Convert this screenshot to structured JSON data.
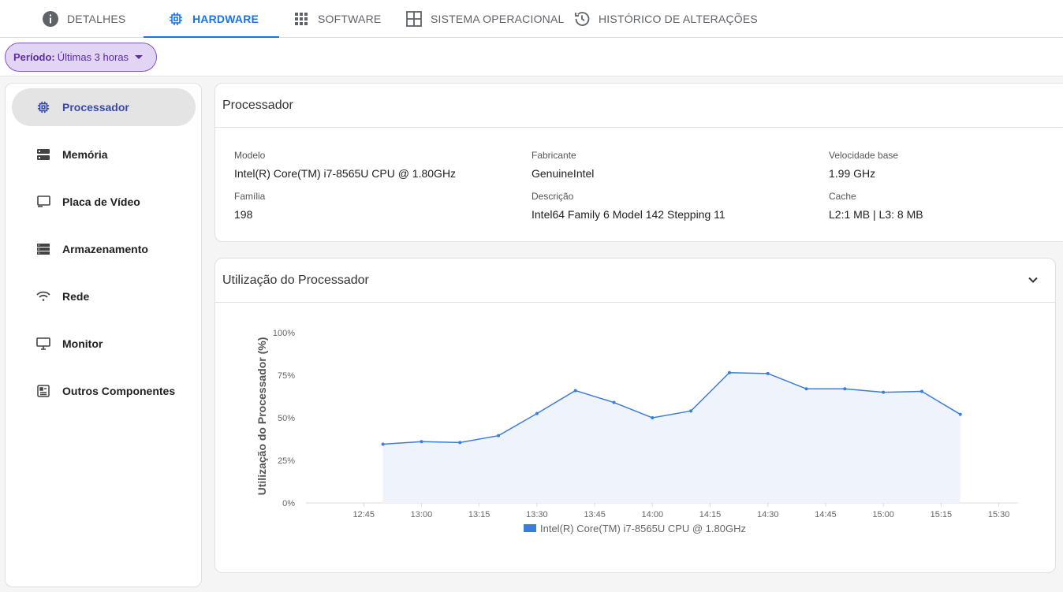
{
  "tabs": [
    {
      "label": "DETALHES",
      "icon": "info-icon",
      "active": false
    },
    {
      "label": "HARDWARE",
      "icon": "chip-icon",
      "active": true
    },
    {
      "label": "SOFTWARE",
      "icon": "apps-grid-icon",
      "active": false
    },
    {
      "label": "SISTEMA OPERACIONAL",
      "icon": "windows-icon",
      "active": false
    },
    {
      "label": "HISTÓRICO DE ALTERAÇÕES",
      "icon": "history-icon",
      "active": false
    }
  ],
  "filter": {
    "label": "Período:",
    "value": "Últimas 3 horas"
  },
  "sidebar": {
    "items": [
      {
        "label": "Processador",
        "icon": "chip-icon",
        "active": true
      },
      {
        "label": "Memória",
        "icon": "memory-icon",
        "active": false
      },
      {
        "label": "Placa de Vídeo",
        "icon": "video-card-icon",
        "active": false
      },
      {
        "label": "Armazenamento",
        "icon": "storage-icon",
        "active": false
      },
      {
        "label": "Rede",
        "icon": "wifi-icon",
        "active": false
      },
      {
        "label": "Monitor",
        "icon": "monitor-icon",
        "active": false
      },
      {
        "label": "Outros Componentes",
        "icon": "components-icon",
        "active": false
      }
    ]
  },
  "processor_card": {
    "title": "Processador",
    "fields": [
      {
        "label": "Modelo",
        "value": "Intel(R) Core(TM) i7-8565U CPU @ 1.80GHz"
      },
      {
        "label": "Fabricante",
        "value": "GenuineIntel"
      },
      {
        "label": "Velocidade base",
        "value": "1.99 GHz"
      },
      {
        "label": "Família",
        "value": "198"
      },
      {
        "label": "Descrição",
        "value": "Intel64 Family 6 Model 142 Stepping 11"
      },
      {
        "label": "Cache",
        "value": "L2:1 MB | L3: 8 MB"
      }
    ]
  },
  "usage_card": {
    "title": "Utilização do Processador",
    "collapse_icon": "chevron-down-icon"
  },
  "colors": {
    "accent": "#1a73e8",
    "series": "#3b7dd8",
    "fill": "#eef3fc",
    "chip_bg": "#e1d5f3",
    "chip_border": "#7e57c2"
  },
  "chart_data": {
    "type": "area",
    "ylabel": "Utilização do Processador (%)",
    "xlabel": "",
    "ylim": [
      0,
      100
    ],
    "y_ticks": [
      "0%",
      "25%",
      "50%",
      "75%",
      "100%"
    ],
    "y_tick_values": [
      0,
      25,
      50,
      75,
      100
    ],
    "x_ticks": [
      "12:45",
      "13:00",
      "13:15",
      "13:30",
      "13:45",
      "14:00",
      "14:15",
      "14:30",
      "14:45",
      "15:00",
      "15:15",
      "15:30"
    ],
    "x_tick_minutes": [
      765,
      780,
      795,
      810,
      825,
      840,
      855,
      870,
      885,
      900,
      915,
      930
    ],
    "xlim_minutes": [
      750,
      935
    ],
    "legend_position": "bottom",
    "grid": false,
    "series": [
      {
        "name": "Intel(R) Core(TM) i7-8565U CPU @ 1.80GHz",
        "x_minutes": [
          770,
          780,
          790,
          800,
          810,
          820,
          830,
          840,
          850,
          860,
          870,
          880,
          890,
          900,
          910,
          920
        ],
        "x": [
          "12:50",
          "13:00",
          "13:10",
          "13:20",
          "13:30",
          "13:40",
          "13:50",
          "14:00",
          "14:10",
          "14:20",
          "14:30",
          "14:40",
          "14:50",
          "15:00",
          "15:10",
          "15:20"
        ],
        "values": [
          34.5,
          36,
          35.5,
          39.5,
          52.5,
          66,
          59,
          50,
          54,
          76.5,
          76,
          67,
          67,
          65,
          65.5,
          52
        ]
      }
    ]
  }
}
